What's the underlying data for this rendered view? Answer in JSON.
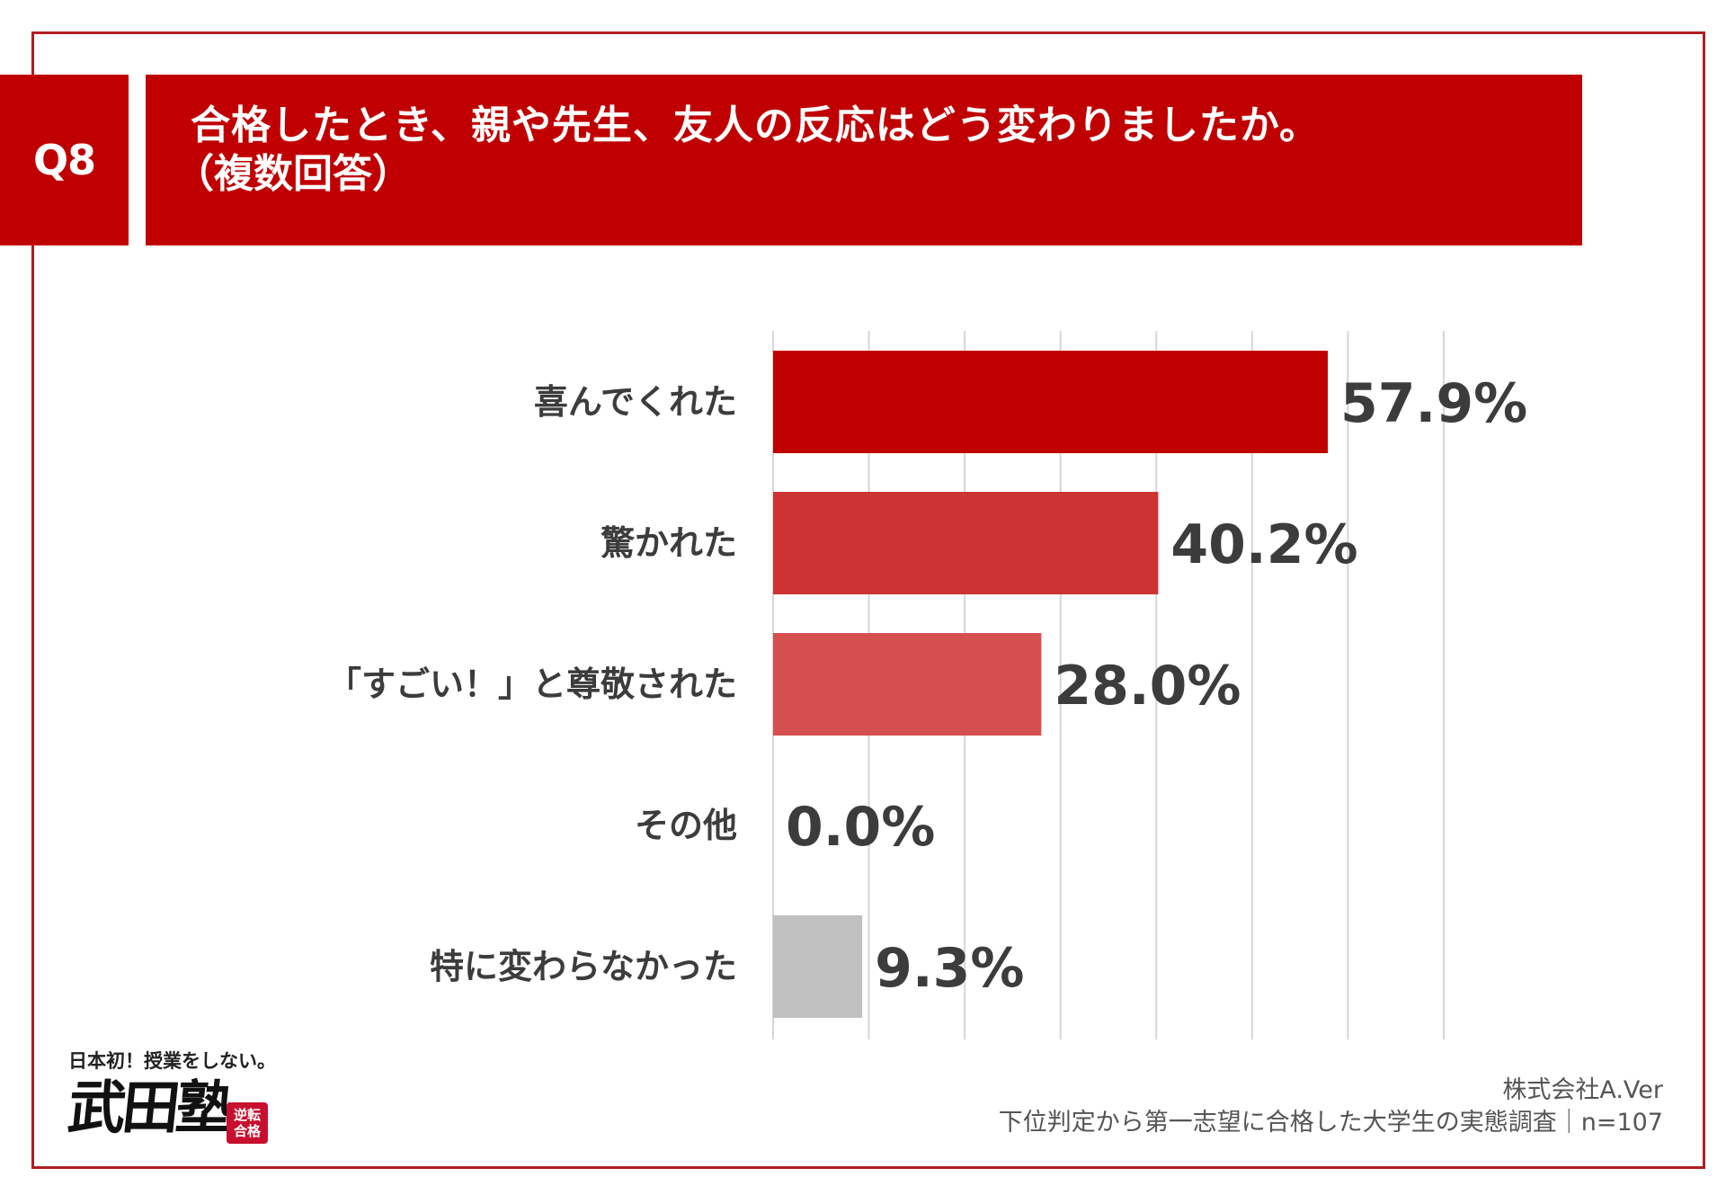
{
  "header": {
    "badge": "Q8",
    "question_line1": "合格したとき、親や先生、友人の反応はどう変わりましたか。",
    "question_line2": "（複数回答）"
  },
  "colors": {
    "frame": "#b01e22",
    "banner": "#c00000",
    "bars": [
      "#c00000",
      "#cc3333",
      "#d64f4f",
      "#e06a6a",
      "#c0c0c0"
    ]
  },
  "chart_data": {
    "type": "bar",
    "orientation": "horizontal",
    "categories": [
      "喜んでくれた",
      "驚かれた",
      "「すごい！」と尊敬された",
      "その他",
      "特に変わらなかった"
    ],
    "values": [
      57.9,
      40.2,
      28.0,
      0.0,
      9.3
    ],
    "value_labels": [
      "57.9%",
      "40.2%",
      "28.0%",
      "0.0%",
      "9.3%"
    ],
    "unit": "%",
    "xlim": [
      0,
      70
    ],
    "grid_step": 10,
    "grid": true,
    "title": "",
    "xlabel": "",
    "ylabel": ""
  },
  "logo": {
    "tagline": "日本初！授業をしない。",
    "brand": "武田塾",
    "stamp": "逆転合格"
  },
  "credits": {
    "company": "株式会社A.Ver",
    "survey": "下位判定から第一志望に合格した大学生の実態調査｜n=107"
  }
}
